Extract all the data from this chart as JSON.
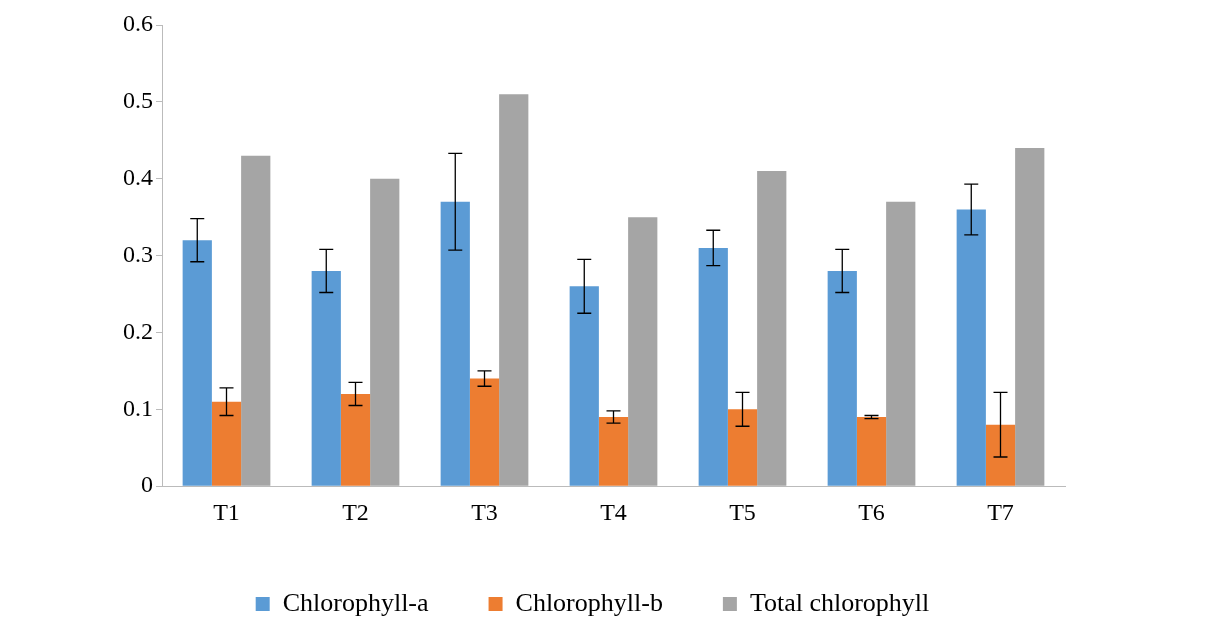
{
  "chart_data": {
    "type": "bar",
    "categories": [
      "T1",
      "T2",
      "T3",
      "T4",
      "T5",
      "T6",
      "T7"
    ],
    "series": [
      {
        "name": "Chlorophyll-a",
        "color": "#5b9bd5",
        "values": [
          0.32,
          0.28,
          0.37,
          0.26,
          0.31,
          0.28,
          0.36
        ],
        "errors": [
          0.028,
          0.028,
          0.063,
          0.035,
          0.023,
          0.028,
          0.033
        ]
      },
      {
        "name": "Chlorophyll-b",
        "color": "#ed7d31",
        "values": [
          0.11,
          0.12,
          0.14,
          0.09,
          0.1,
          0.09,
          0.08
        ],
        "errors": [
          0.018,
          0.015,
          0.01,
          0.008,
          0.022,
          0.002,
          0.042
        ]
      },
      {
        "name": "Total chlorophyll",
        "color": "#a5a5a5",
        "values": [
          0.43,
          0.4,
          0.51,
          0.35,
          0.41,
          0.37,
          0.44
        ]
      }
    ],
    "ylim": [
      0,
      0.6
    ],
    "yticks": [
      0,
      0.1,
      0.2,
      0.3,
      0.4,
      0.5,
      0.6
    ],
    "grid": false,
    "legend": "bottom"
  }
}
